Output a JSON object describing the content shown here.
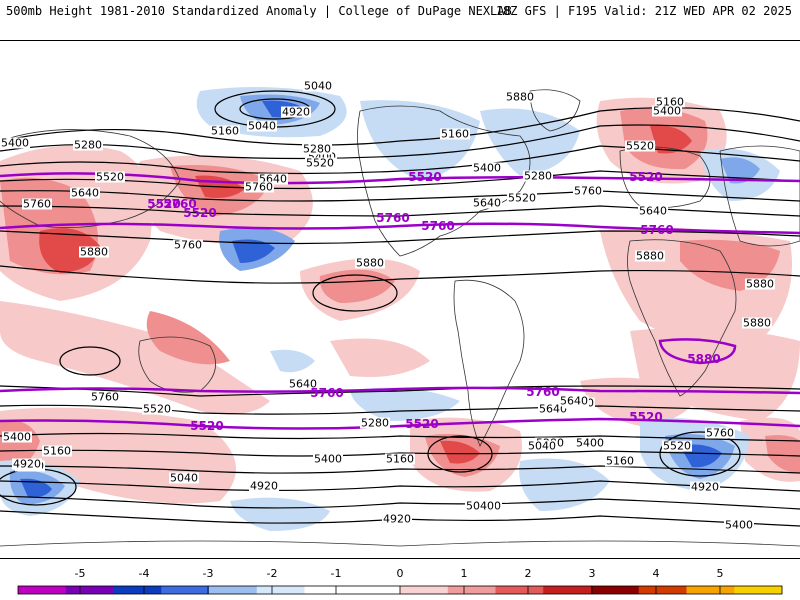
{
  "header": {
    "left": "500mb Height 1981-2010 Standardized Anomaly | College of DuPage NEXLAB",
    "right": "18Z GFS | F195 Valid: 21Z WED APR 02 2025"
  },
  "colors": {
    "positive_1": "#f7c9c9",
    "positive_2": "#ef8f8f",
    "positive_3": "#e24a4a",
    "negative_1": "#c6dcf5",
    "negative_2": "#7fa8ea",
    "negative_3": "#2f62d6",
    "highlight_contour": "#9b00c8",
    "contour": "#000000",
    "coastline": "#333333"
  },
  "colorbar": {
    "ticks": [
      "-5",
      "-4",
      "-3",
      "-2",
      "-1",
      "0",
      "1",
      "2",
      "3",
      "4",
      "5"
    ],
    "colors": [
      "#c000c0",
      "#7a00b8",
      "#0b3bbf",
      "#3d6be0",
      "#9cbdf0",
      "#d8e8fb",
      "#ffffff",
      "#ffffff",
      "#f9d3d3",
      "#f09c9c",
      "#e45a5a",
      "#c61e1e",
      "#8a0000",
      "#d13b00",
      "#f7a400",
      "#f7d000"
    ]
  },
  "map": {
    "height_labels": [
      {
        "text": "5040"
      },
      {
        "text": "4920"
      },
      {
        "text": "5040"
      },
      {
        "text": "5160"
      },
      {
        "text": "5280"
      },
      {
        "text": "5400"
      },
      {
        "text": "5400"
      },
      {
        "text": "5280"
      },
      {
        "text": "5520"
      },
      {
        "text": "5520"
      },
      {
        "text": "5640"
      },
      {
        "text": "5640"
      },
      {
        "text": "5760"
      },
      {
        "text": "5760"
      },
      {
        "text": "5760"
      },
      {
        "text": "5880"
      },
      {
        "text": "5880"
      },
      {
        "text": "5880"
      },
      {
        "text": "5160"
      },
      {
        "text": "5160"
      },
      {
        "text": "5400"
      },
      {
        "text": "5520"
      },
      {
        "text": "5280"
      },
      {
        "text": "5400"
      },
      {
        "text": "5520"
      },
      {
        "text": "5640"
      },
      {
        "text": "5640"
      },
      {
        "text": "5760"
      },
      {
        "text": "5880"
      },
      {
        "text": "5880"
      },
      {
        "text": "5880"
      },
      {
        "text": "5760"
      },
      {
        "text": "5640"
      },
      {
        "text": "5520"
      },
      {
        "text": "5280"
      },
      {
        "text": "5400"
      },
      {
        "text": "5160"
      },
      {
        "text": "5040"
      },
      {
        "text": "4920"
      },
      {
        "text": "5040"
      },
      {
        "text": "4920"
      },
      {
        "text": "5400"
      },
      {
        "text": "5160"
      },
      {
        "text": "5640"
      },
      {
        "text": "5280"
      },
      {
        "text": "5280"
      },
      {
        "text": "5040"
      },
      {
        "text": "4920"
      },
      {
        "text": "5760"
      },
      {
        "text": "5520"
      },
      {
        "text": "5640"
      },
      {
        "text": "5400"
      },
      {
        "text": "5160"
      },
      {
        "text": "5040"
      },
      {
        "text": "4920"
      },
      {
        "text": "4920"
      },
      {
        "text": "5400"
      }
    ],
    "highlight_labels": [
      {
        "text": "5520"
      },
      {
        "text": "5760"
      },
      {
        "text": "5520"
      },
      {
        "text": "5760"
      },
      {
        "text": "5520"
      },
      {
        "text": "5760"
      },
      {
        "text": "5880"
      },
      {
        "text": "5760"
      },
      {
        "text": "5520"
      },
      {
        "text": "5520"
      },
      {
        "text": "5760"
      },
      {
        "text": "5520"
      },
      {
        "text": "5760"
      },
      {
        "text": "5520"
      }
    ]
  }
}
